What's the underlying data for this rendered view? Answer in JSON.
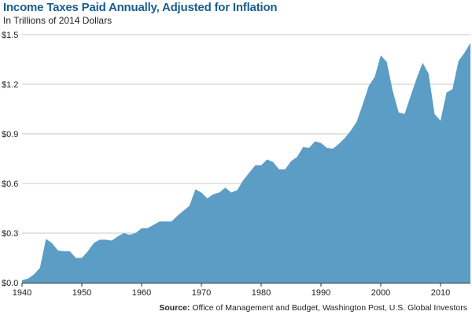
{
  "header": {
    "title": "Income Taxes Paid Annually, Adjusted for Inflation",
    "subtitle": "In Trillions of 2014 Dollars"
  },
  "footer": {
    "source_label": "Source:",
    "source_text": "Office of Management and Budget, Washington Post, U.S. Global Investors"
  },
  "colors": {
    "area_fill": "#5b9dc4",
    "title": "#1a5d8f",
    "grid": "#c8c8c8",
    "axis": "#333333"
  },
  "chart_data": {
    "type": "area",
    "title": "Income Taxes Paid Annually, Adjusted for Inflation",
    "subtitle": "In Trillions of 2014 Dollars",
    "xlabel": "",
    "ylabel": "",
    "xlim": [
      1940,
      2015
    ],
    "ylim": [
      0,
      1.5
    ],
    "grid": true,
    "y_ticks": [
      {
        "value": 0.0,
        "label": "$0.0"
      },
      {
        "value": 0.3,
        "label": "$0.3"
      },
      {
        "value": 0.6,
        "label": "$0.6"
      },
      {
        "value": 0.9,
        "label": "$0.9"
      },
      {
        "value": 1.2,
        "label": "$1.2"
      },
      {
        "value": 1.5,
        "label": "$1.5"
      }
    ],
    "x_ticks": [
      {
        "value": 1940,
        "label": "1940"
      },
      {
        "value": 1950,
        "label": "1950"
      },
      {
        "value": 1960,
        "label": "1960"
      },
      {
        "value": 1970,
        "label": "1970"
      },
      {
        "value": 1980,
        "label": "1980"
      },
      {
        "value": 1990,
        "label": "1990"
      },
      {
        "value": 2000,
        "label": "2000"
      },
      {
        "value": 2010,
        "label": "2010"
      }
    ],
    "series": [
      {
        "name": "Income Taxes Paid",
        "x": [
          1940,
          1941,
          1942,
          1943,
          1944,
          1945,
          1946,
          1947,
          1948,
          1949,
          1950,
          1951,
          1952,
          1953,
          1954,
          1955,
          1956,
          1957,
          1958,
          1959,
          1960,
          1961,
          1962,
          1963,
          1964,
          1965,
          1966,
          1967,
          1968,
          1969,
          1970,
          1971,
          1972,
          1973,
          1974,
          1975,
          1976,
          1977,
          1978,
          1979,
          1980,
          1981,
          1982,
          1983,
          1984,
          1985,
          1986,
          1987,
          1988,
          1989,
          1990,
          1991,
          1992,
          1993,
          1994,
          1995,
          1996,
          1997,
          1998,
          1999,
          2000,
          2001,
          2002,
          2003,
          2004,
          2005,
          2006,
          2007,
          2008,
          2009,
          2010,
          2011,
          2012,
          2013,
          2014,
          2015
        ],
        "values": [
          0.015,
          0.025,
          0.05,
          0.09,
          0.265,
          0.24,
          0.195,
          0.19,
          0.19,
          0.15,
          0.15,
          0.19,
          0.24,
          0.26,
          0.26,
          0.255,
          0.28,
          0.3,
          0.29,
          0.3,
          0.33,
          0.33,
          0.35,
          0.37,
          0.37,
          0.37,
          0.405,
          0.435,
          0.465,
          0.565,
          0.545,
          0.51,
          0.535,
          0.545,
          0.575,
          0.545,
          0.56,
          0.62,
          0.665,
          0.71,
          0.71,
          0.745,
          0.73,
          0.685,
          0.685,
          0.735,
          0.76,
          0.82,
          0.815,
          0.855,
          0.845,
          0.815,
          0.81,
          0.84,
          0.875,
          0.92,
          0.975,
          1.08,
          1.19,
          1.245,
          1.375,
          1.335,
          1.16,
          1.03,
          1.02,
          1.13,
          1.235,
          1.33,
          1.265,
          1.02,
          0.98,
          1.15,
          1.17,
          1.34,
          1.39,
          1.45
        ]
      }
    ],
    "source": "Source: Office of Management and Budget, Washington Post, U.S. Global Investors"
  }
}
